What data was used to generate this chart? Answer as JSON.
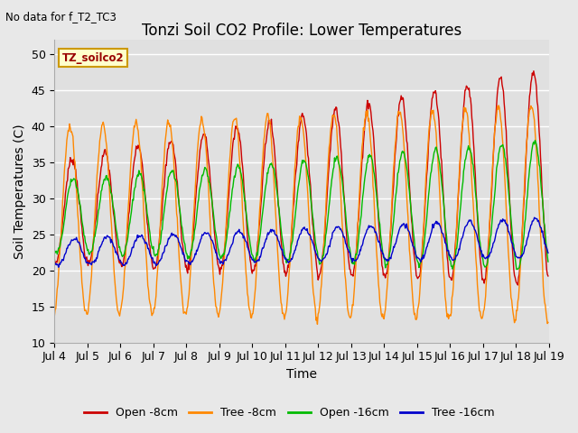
{
  "title": "Tonzi Soil CO2 Profile: Lower Temperatures",
  "subtitle": "No data for f_T2_TC3",
  "xlabel": "Time",
  "ylabel": "Soil Temperatures (C)",
  "ylim": [
    10,
    52
  ],
  "yticks": [
    10,
    15,
    20,
    25,
    30,
    35,
    40,
    45,
    50
  ],
  "background_color": "#e8e8e8",
  "plot_bg_color": "#e0e0e0",
  "legend_label": "TZ_soilco2",
  "legend_box_color": "#ffffcc",
  "legend_box_edge": "#cc9900",
  "series_colors": [
    "#cc0000",
    "#ff8800",
    "#00bb00",
    "#0000cc"
  ],
  "series_labels": [
    "Open -8cm",
    "Tree -8cm",
    "Open -16cm",
    "Tree -16cm"
  ],
  "xtick_labels": [
    "Jul 4",
    "Jul 5",
    "Jul 6",
    "Jul 7",
    "Jul 8",
    "Jul 9",
    "Jul 10",
    "Jul 11",
    "Jul 12",
    "Jul 13",
    "Jul 14",
    "Jul 15",
    "Jul 16",
    "Jul 17",
    "Jul 18",
    "Jul 19"
  ],
  "num_days": 15,
  "title_fontsize": 12,
  "axis_label_fontsize": 10,
  "tick_fontsize": 9
}
